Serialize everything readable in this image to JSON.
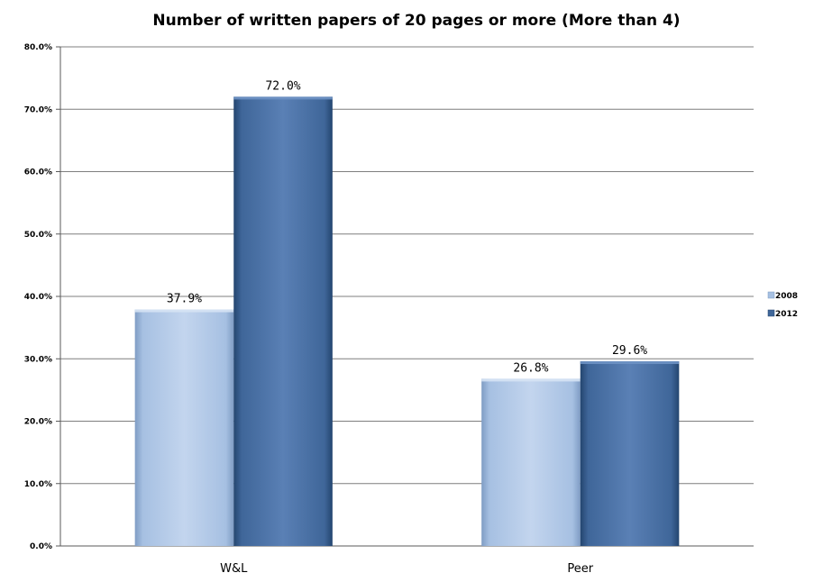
{
  "chart_data": {
    "type": "bar",
    "title": "Number of written papers of 20 pages or more (More  than 4)",
    "categories": [
      "W&L",
      "Peer"
    ],
    "series": [
      {
        "name": "2008",
        "values": [
          37.9,
          26.8
        ],
        "labels": [
          "37.9%",
          "26.8%"
        ]
      },
      {
        "name": "2012",
        "values": [
          72.0,
          29.6
        ],
        "labels": [
          "72.0%",
          "29.6%"
        ]
      }
    ],
    "yticks": [
      "0.0%",
      "10.0%",
      "20.0%",
      "30.0%",
      "40.0%",
      "50.0%",
      "60.0%",
      "70.0%",
      "80.0%"
    ],
    "ylim": [
      0,
      80
    ],
    "grid": true,
    "legend_position": "right",
    "colors": {
      "2008": "#a6c0e2",
      "2012": "#3f6699",
      "2008_dark": "#7f9cc4",
      "2012_dark": "#24456f",
      "grid": "#7f7f7f"
    }
  }
}
